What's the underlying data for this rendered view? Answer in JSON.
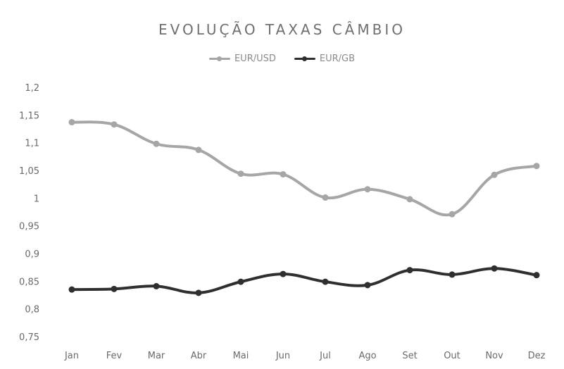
{
  "chart_data": {
    "type": "line",
    "title": "EVOLUÇÃO TAXAS CÂMBIO",
    "categories": [
      "Jan",
      "Fev",
      "Mar",
      "Abr",
      "Mai",
      "Jun",
      "Jul",
      "Ago",
      "Set",
      "Out",
      "Nov",
      "Dez"
    ],
    "yticks": [
      "1,2",
      "1,15",
      "1,1",
      "1,05",
      "1",
      "0,95",
      "0,9",
      "0,85",
      "0,8",
      "0,75"
    ],
    "ylim": [
      0.75,
      1.2
    ],
    "grid": false,
    "legend_position": "top",
    "series": [
      {
        "name": "EUR/USD",
        "color": "#a6a6a6",
        "values": [
          1.137,
          1.133,
          1.098,
          1.087,
          1.044,
          1.043,
          1.001,
          1.016,
          0.998,
          0.971,
          1.042,
          1.058
        ]
      },
      {
        "name": "EUR/GB",
        "color": "#2f2f2f",
        "values": [
          0.835,
          0.836,
          0.841,
          0.829,
          0.849,
          0.863,
          0.849,
          0.843,
          0.87,
          0.862,
          0.873,
          0.861
        ]
      }
    ]
  }
}
